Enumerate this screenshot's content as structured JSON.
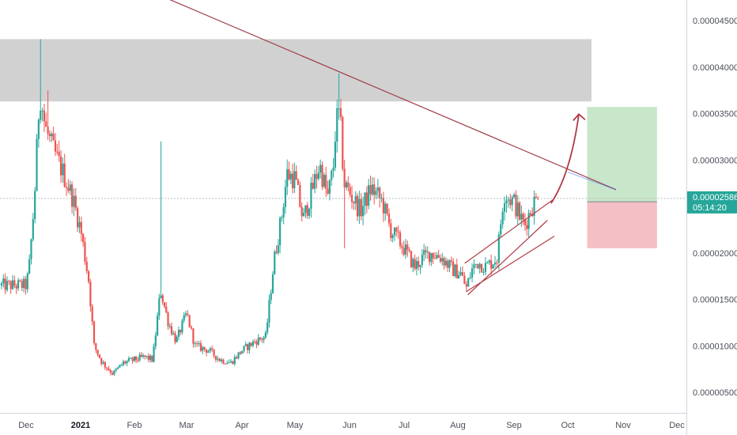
{
  "chart_data": {
    "type": "candlestick",
    "y_axis": {
      "ticks": [
        "0.00004500",
        "0.00004000",
        "0.00003500",
        "0.00003000",
        "0.00002000",
        "0.00001500",
        "0.00001000",
        "0.00000500"
      ],
      "tick_values": [
        4.5,
        4.0,
        3.5,
        3.0,
        2.0,
        1.5,
        1.0,
        0.5
      ],
      "ylim": [
        0.05,
        4.75
      ],
      "unit_scale": "1e-5"
    },
    "x_axis": {
      "labels": [
        "Dec",
        "2021",
        "Feb",
        "Mar",
        "Apr",
        "May",
        "Jun",
        "Jul",
        "Aug",
        "Sep",
        "Oct",
        "Nov",
        "Dec"
      ],
      "bold_labels": [
        "2021"
      ],
      "xlim": [
        0,
        12.3
      ]
    },
    "current_price": {
      "price_label": "0.00002586",
      "timer_label": "05:14:20",
      "value": 2.586
    },
    "colors": {
      "up": "#26a69a",
      "down": "#ef5350",
      "trendline": "#9e3c46",
      "arrow": "#b03a45",
      "channel": "#b03a45",
      "resistance_zone": "#d1d1d1",
      "target_zone": "#c8e6c9",
      "stop_zone": "#f5c0c5",
      "price_tag": "#26a69a"
    },
    "anchors": [
      [
        0.0,
        1.65
      ],
      [
        0.05,
        1.8
      ],
      [
        0.15,
        2.55
      ],
      [
        0.25,
        3.75
      ],
      [
        0.35,
        3.35
      ],
      [
        0.5,
        3.1
      ],
      [
        0.65,
        2.9
      ],
      [
        0.85,
        2.6
      ],
      [
        1.0,
        2.25
      ],
      [
        1.15,
        1.7
      ],
      [
        1.25,
        1.0
      ],
      [
        1.4,
        0.82
      ],
      [
        1.6,
        0.7
      ],
      [
        1.8,
        0.82
      ],
      [
        2.0,
        0.85
      ],
      [
        2.2,
        0.88
      ],
      [
        2.35,
        0.85
      ],
      [
        2.5,
        1.6
      ],
      [
        2.65,
        1.25
      ],
      [
        2.8,
        1.05
      ],
      [
        3.0,
        1.35
      ],
      [
        3.15,
        1.0
      ],
      [
        3.4,
        0.95
      ],
      [
        3.6,
        0.85
      ],
      [
        3.8,
        0.82
      ],
      [
        4.0,
        0.95
      ],
      [
        4.25,
        1.05
      ],
      [
        4.45,
        1.1
      ],
      [
        4.6,
        1.9
      ],
      [
        4.75,
        2.4
      ],
      [
        4.85,
        2.85
      ],
      [
        5.0,
        2.8
      ],
      [
        5.15,
        2.35
      ],
      [
        5.3,
        2.65
      ],
      [
        5.45,
        2.95
      ],
      [
        5.6,
        2.6
      ],
      [
        5.7,
        2.9
      ],
      [
        5.75,
        3.4
      ],
      [
        5.82,
        3.5
      ],
      [
        5.9,
        2.75
      ],
      [
        6.05,
        2.6
      ],
      [
        6.2,
        2.45
      ],
      [
        6.4,
        2.7
      ],
      [
        6.6,
        2.55
      ],
      [
        6.75,
        2.25
      ],
      [
        7.0,
        2.05
      ],
      [
        7.2,
        1.85
      ],
      [
        7.35,
        1.95
      ],
      [
        7.5,
        2.0
      ],
      [
        7.7,
        1.95
      ],
      [
        7.9,
        1.82
      ],
      [
        8.05,
        1.78
      ],
      [
        8.15,
        1.62
      ],
      [
        8.25,
        1.82
      ],
      [
        8.35,
        1.9
      ],
      [
        8.5,
        1.85
      ],
      [
        8.6,
        1.9
      ],
      [
        8.7,
        1.95
      ],
      [
        8.75,
        2.25
      ],
      [
        8.82,
        2.65
      ],
      [
        8.9,
        2.6
      ],
      [
        9.0,
        2.55
      ],
      [
        9.1,
        2.4
      ],
      [
        9.2,
        2.3
      ],
      [
        9.3,
        2.45
      ],
      [
        9.38,
        2.55
      ],
      [
        9.45,
        2.586
      ]
    ],
    "annotations": {
      "resistance_zone": {
        "x0": 0.0,
        "x1": 11.0,
        "y0": 3.63,
        "y1": 4.3
      },
      "trendline": {
        "x0": 2.7,
        "y0": 4.75,
        "x1": 10.9,
        "y1": 2.68
      },
      "channel_lower": {
        "x0": 8.15,
        "y0": 1.6,
        "x1": 9.72,
        "y1": 2.52
      },
      "channel_upper": {
        "x0": 8.15,
        "y0": 1.82,
        "x1": 9.72,
        "y1": 2.57
      },
      "channel_lower2": {
        "x0": 8.15,
        "y0": 1.6,
        "x1": 9.75,
        "y1": 2.18
      },
      "position": {
        "x0": 10.35,
        "x1": 11.63,
        "entry": 2.55,
        "target": 3.57,
        "stop": 2.05
      },
      "arrow": {
        "x0": 9.6,
        "y0": 2.55,
        "cx": 10.05,
        "cy": 2.85,
        "x1": 10.2,
        "y1": 3.45
      }
    }
  }
}
